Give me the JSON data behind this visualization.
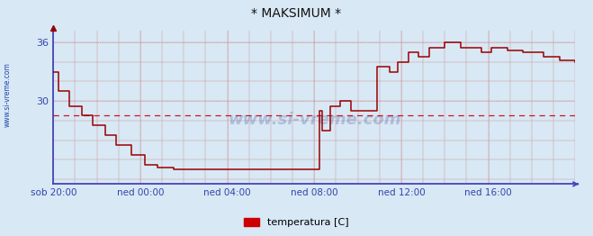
{
  "title": "* MAKSIMUM *",
  "bg_color": "#d8e8f5",
  "line_color": "#990000",
  "axis_color": "#4444bb",
  "tick_color": "#3344aa",
  "legend_label": "temperatura [C]",
  "legend_color": "#cc0000",
  "watermark_text": "www.si-vreme.com",
  "ylabel_text": "www.si-vreme.com",
  "ylim": [
    21.5,
    37.2
  ],
  "hline_y": 28.5,
  "x_tick_positions": [
    0.0,
    0.1667,
    0.3333,
    0.5,
    0.6667,
    0.8333
  ],
  "x_tick_labels": [
    "sob 20:00",
    "ned 00:00",
    "ned 04:00",
    "ned 08:00",
    "ned 12:00",
    "ned 16:00"
  ],
  "ytick_positions": [
    30,
    36
  ],
  "ytick_labels": [
    "30",
    "36"
  ],
  "data_x": [
    0.0,
    0.01,
    0.03,
    0.055,
    0.075,
    0.1,
    0.12,
    0.15,
    0.175,
    0.2,
    0.23,
    0.26,
    0.29,
    0.333,
    0.5,
    0.51,
    0.515,
    0.53,
    0.55,
    0.57,
    0.62,
    0.645,
    0.66,
    0.68,
    0.7,
    0.72,
    0.75,
    0.78,
    0.82,
    0.84,
    0.87,
    0.9,
    0.94,
    0.97,
    1.0
  ],
  "data_y": [
    33.0,
    31.0,
    29.5,
    28.5,
    27.5,
    26.5,
    25.5,
    24.5,
    23.5,
    23.2,
    23.0,
    23.0,
    23.0,
    23.0,
    23.0,
    29.0,
    27.0,
    29.5,
    30.0,
    29.0,
    33.5,
    33.0,
    34.0,
    35.0,
    34.5,
    35.5,
    36.0,
    35.5,
    35.0,
    35.5,
    35.2,
    35.0,
    34.5,
    34.2,
    34.0
  ],
  "figsize": [
    6.59,
    2.62
  ],
  "dpi": 100
}
